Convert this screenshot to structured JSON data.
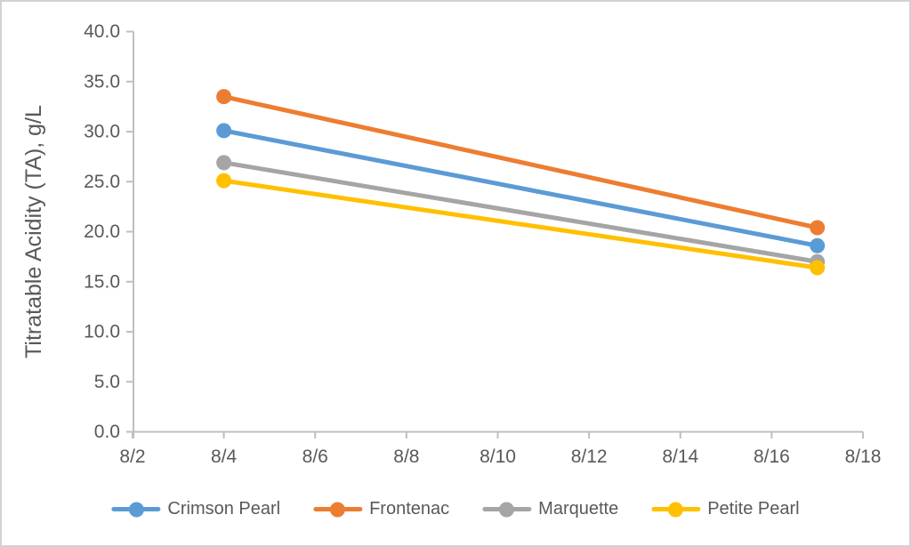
{
  "chart_data": {
    "type": "line",
    "title": "",
    "xlabel": "",
    "ylabel": "Titratable Acidity (TA), g/L",
    "x": [
      "8/4",
      "8/17"
    ],
    "series": [
      {
        "name": "Crimson Pearl",
        "color": "#5B9BD5",
        "values": [
          30.1,
          18.6
        ]
      },
      {
        "name": "Frontenac",
        "color": "#ED7D31",
        "values": [
          33.5,
          20.4
        ]
      },
      {
        "name": "Marquette",
        "color": "#A5A5A5",
        "values": [
          26.9,
          17.0
        ]
      },
      {
        "name": "Petite Pearl",
        "color": "#FFC000",
        "values": [
          25.1,
          16.4
        ]
      }
    ],
    "x_ticks": [
      "8/2",
      "8/4",
      "8/6",
      "8/8",
      "8/10",
      "8/12",
      "8/14",
      "8/16",
      "8/18"
    ],
    "y_ticks": [
      "0.0",
      "5.0",
      "10.0",
      "15.0",
      "20.0",
      "25.0",
      "30.0",
      "35.0",
      "40.0"
    ],
    "ylim": [
      0,
      40
    ],
    "xlim_days": [
      2,
      18
    ],
    "grid": false,
    "legend_position": "bottom",
    "marker": "circle"
  },
  "style": {
    "axis_color": "#BFBFBF",
    "text_color": "#595959",
    "border_color": "#D2D2D2",
    "background": "#FFFFFF"
  }
}
